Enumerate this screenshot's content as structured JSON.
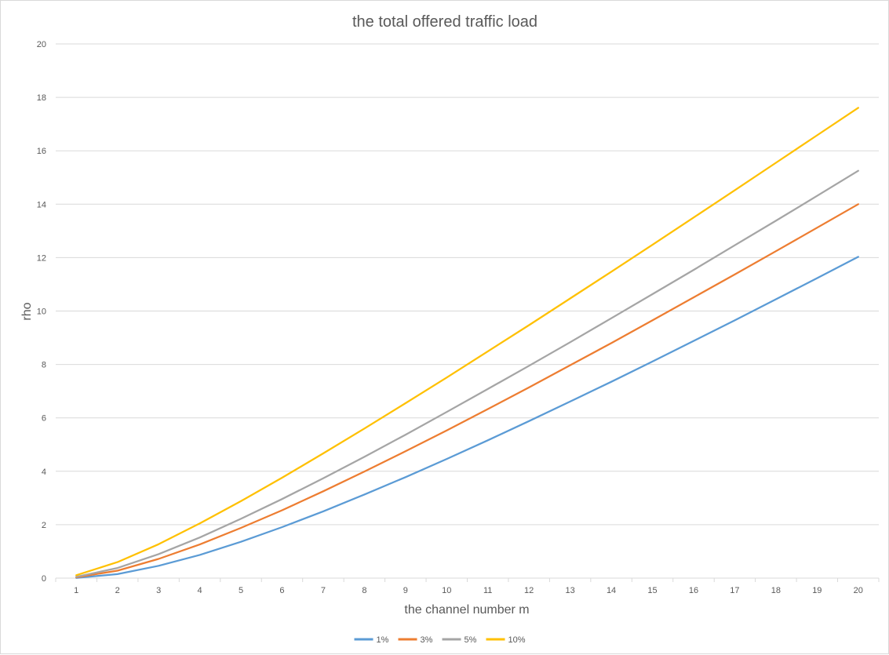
{
  "chart_data": {
    "type": "line",
    "title": "the total offered traffic load",
    "xlabel": "the channel number m",
    "ylabel": "rho",
    "categories": [
      1,
      2,
      3,
      4,
      5,
      6,
      7,
      8,
      9,
      10,
      11,
      12,
      13,
      14,
      15,
      16,
      17,
      18,
      19,
      20
    ],
    "ylim": [
      0,
      20
    ],
    "yticks": [
      0,
      2,
      4,
      6,
      8,
      10,
      12,
      14,
      16,
      18,
      20
    ],
    "grid": "horizontal",
    "legend_position": "bottom",
    "series": [
      {
        "name": "1%",
        "color": "#5b9bd5",
        "values": [
          0.01,
          0.15,
          0.46,
          0.87,
          1.36,
          1.91,
          2.5,
          3.13,
          3.78,
          4.46,
          5.16,
          5.88,
          6.61,
          7.35,
          8.11,
          8.88,
          9.65,
          10.44,
          11.23,
          12.03
        ]
      },
      {
        "name": "3%",
        "color": "#ed7d31",
        "values": [
          0.03,
          0.28,
          0.72,
          1.26,
          1.88,
          2.54,
          3.25,
          3.99,
          4.75,
          5.53,
          6.33,
          7.14,
          7.97,
          8.8,
          9.65,
          10.51,
          11.37,
          12.24,
          13.12,
          14.0
        ]
      },
      {
        "name": "5%",
        "color": "#a5a5a5",
        "values": [
          0.05,
          0.38,
          0.9,
          1.52,
          2.22,
          2.96,
          3.74,
          4.54,
          5.37,
          6.22,
          7.08,
          7.95,
          8.83,
          9.73,
          10.63,
          11.54,
          12.46,
          13.38,
          14.31,
          15.25
        ]
      },
      {
        "name": "10%",
        "color": "#ffc000",
        "values": [
          0.11,
          0.6,
          1.27,
          2.05,
          2.88,
          3.76,
          4.67,
          5.6,
          6.55,
          7.51,
          8.49,
          9.47,
          10.47,
          11.47,
          12.48,
          13.5,
          14.52,
          15.55,
          16.58,
          17.61
        ]
      }
    ]
  }
}
